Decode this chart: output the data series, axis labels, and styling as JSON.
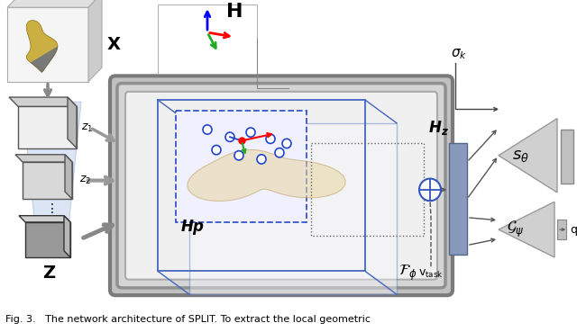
{
  "fig_width": 6.4,
  "fig_height": 3.69,
  "dpi": 100,
  "bg_color": "#ffffff",
  "caption": "Fig. 3.   The network architecture of SPLIT. To extract the local geometric"
}
